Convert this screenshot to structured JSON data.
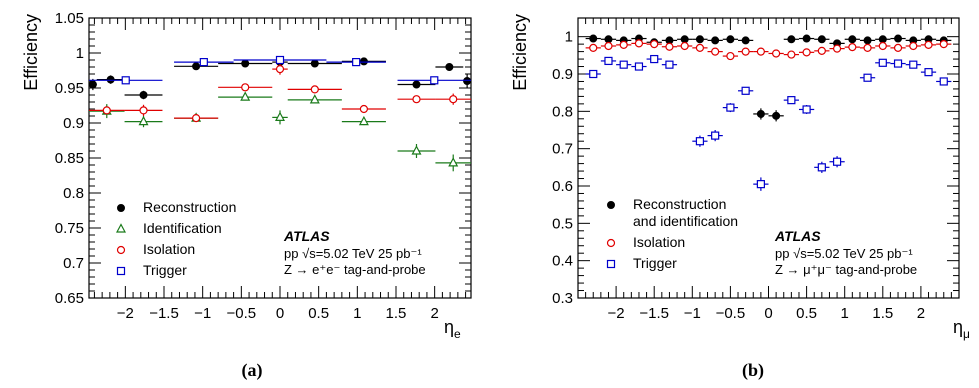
{
  "chart_data": [
    {
      "type": "scatter",
      "caption": "(a)",
      "ylabel": "Efficiency",
      "xlabel": "η",
      "xlabel_sub": "e",
      "xlim": [
        -2.47,
        2.47
      ],
      "ylim": [
        0.65,
        1.05
      ],
      "xticks": [
        -2,
        -1.5,
        -1,
        -0.5,
        0,
        0.5,
        1,
        1.5,
        2
      ],
      "xtick_labels": [
        "−2",
        "−1.5",
        "−1",
        "−0.5",
        "0",
        "0.5",
        "1",
        "1.5",
        "2"
      ],
      "yticks": [
        0.65,
        0.7,
        0.75,
        0.8,
        0.85,
        0.9,
        0.95,
        1,
        1.05
      ],
      "ytick_labels": [
        "0.65",
        "0.7",
        "0.75",
        "0.8",
        "0.85",
        "0.9",
        "0.95",
        "1",
        "1.05"
      ],
      "annotation": {
        "experiment": "ATLAS",
        "line1": "pp √s=5.02 TeV 25 pb⁻¹",
        "line2": "Z → e⁺e⁻ tag-and-probe"
      },
      "legend": {
        "position": "bottom-left"
      },
      "series": [
        {
          "name": "Reconstruction",
          "marker": "filled-circle",
          "color": "#000000",
          "points": [
            {
              "x0": -2.47,
              "x1": -2.37,
              "y": 0.955,
              "e": 0.008
            },
            {
              "x0": -2.37,
              "x1": -2.01,
              "y": 0.962,
              "e": 0.006
            },
            {
              "x0": -2.01,
              "x1": -1.52,
              "y": 0.94,
              "e": 0.006
            },
            {
              "x0": -1.37,
              "x1": -0.8,
              "y": 0.981,
              "e": 0.002
            },
            {
              "x0": -0.8,
              "x1": -0.1,
              "y": 0.985,
              "e": 0.002
            },
            {
              "x0": -0.1,
              "x1": 0.1,
              "y": 0.987,
              "e": 0.003
            },
            {
              "x0": 0.1,
              "x1": 0.8,
              "y": 0.985,
              "e": 0.002
            },
            {
              "x0": 0.8,
              "x1": 1.37,
              "y": 0.988,
              "e": 0.002
            },
            {
              "x0": 1.52,
              "x1": 2.01,
              "y": 0.955,
              "e": 0.005
            },
            {
              "x0": 2.01,
              "x1": 2.37,
              "y": 0.98,
              "e": 0.004
            },
            {
              "x0": 2.37,
              "x1": 2.47,
              "y": 0.96,
              "e": 0.01
            }
          ]
        },
        {
          "name": "Identification",
          "marker": "open-triangle",
          "color": "#1a7a1a",
          "points": [
            {
              "x0": -2.47,
              "x1": -2.01,
              "y": 0.917,
              "e": 0.01
            },
            {
              "x0": -2.01,
              "x1": -1.52,
              "y": 0.902,
              "e": 0.008
            },
            {
              "x0": -1.37,
              "x1": -0.8,
              "y": 0.907,
              "e": 0.004
            },
            {
              "x0": -0.8,
              "x1": -0.1,
              "y": 0.937,
              "e": 0.004
            },
            {
              "x0": -0.1,
              "x1": 0.1,
              "y": 0.908,
              "e": 0.01
            },
            {
              "x0": 0.1,
              "x1": 0.8,
              "y": 0.933,
              "e": 0.004
            },
            {
              "x0": 0.8,
              "x1": 1.37,
              "y": 0.902,
              "e": 0.005
            },
            {
              "x0": 1.52,
              "x1": 2.01,
              "y": 0.86,
              "e": 0.01
            },
            {
              "x0": 2.01,
              "x1": 2.47,
              "y": 0.843,
              "e": 0.012
            }
          ]
        },
        {
          "name": "Isolation",
          "marker": "open-circle",
          "color": "#e00000",
          "points": [
            {
              "x0": -2.47,
              "x1": -2.01,
              "y": 0.918,
              "e": 0.004
            },
            {
              "x0": -2.01,
              "x1": -1.52,
              "y": 0.918,
              "e": 0.008
            },
            {
              "x0": -1.37,
              "x1": -0.8,
              "y": 0.907,
              "e": 0.004
            },
            {
              "x0": -0.8,
              "x1": -0.1,
              "y": 0.951,
              "e": 0.004
            },
            {
              "x0": -0.1,
              "x1": 0.1,
              "y": 0.977,
              "e": 0.008
            },
            {
              "x0": 0.1,
              "x1": 0.8,
              "y": 0.948,
              "e": 0.004
            },
            {
              "x0": 0.8,
              "x1": 1.37,
              "y": 0.92,
              "e": 0.005
            },
            {
              "x0": 1.52,
              "x1": 2.01,
              "y": 0.934,
              "e": 0.005
            },
            {
              "x0": 2.01,
              "x1": 2.47,
              "y": 0.934,
              "e": 0.008
            }
          ]
        },
        {
          "name": "Trigger",
          "marker": "open-square",
          "color": "#0000cc",
          "points": [
            {
              "x0": -2.47,
              "x1": -1.52,
              "y": 0.961,
              "e": 0.002
            },
            {
              "x0": -1.37,
              "x1": -0.6,
              "y": 0.987,
              "e": 0.002
            },
            {
              "x0": -0.6,
              "x1": 0.6,
              "y": 0.99,
              "e": 0.002
            },
            {
              "x0": 0.6,
              "x1": 1.37,
              "y": 0.987,
              "e": 0.002
            },
            {
              "x0": 1.52,
              "x1": 2.47,
              "y": 0.961,
              "e": 0.002
            }
          ]
        }
      ]
    },
    {
      "type": "scatter",
      "caption": "(b)",
      "ylabel": "Efficiency",
      "xlabel": "η",
      "xlabel_sub": "μ",
      "xlim": [
        -2.5,
        2.5
      ],
      "ylim": [
        0.3,
        1.05
      ],
      "xticks": [
        -2,
        -1.5,
        -1,
        -0.5,
        0,
        0.5,
        1,
        1.5,
        2
      ],
      "xtick_labels": [
        "−2",
        "−1.5",
        "−1",
        "−0.5",
        "0",
        "0.5",
        "1",
        "1.5",
        "2"
      ],
      "yticks": [
        0.3,
        0.4,
        0.5,
        0.6,
        0.7,
        0.8,
        0.9,
        1
      ],
      "ytick_labels": [
        "0.3",
        "0.4",
        "0.5",
        "0.6",
        "0.7",
        "0.8",
        "0.9",
        "1"
      ],
      "annotation": {
        "experiment": "ATLAS",
        "line1": "pp √s=5.02 TeV 25 pb⁻¹",
        "line2": "Z → μ⁺μ⁻ tag-and-probe"
      },
      "legend": {
        "position": "bottom-left"
      },
      "series": [
        {
          "name": "Reconstruction and identification",
          "name_lines": [
            "Reconstruction",
            "and identification"
          ],
          "marker": "filled-circle",
          "color": "#000000",
          "points": [
            {
              "x": -2.3,
              "y": 0.995,
              "e": 0.005
            },
            {
              "x": -2.1,
              "y": 0.993,
              "e": 0.004
            },
            {
              "x": -1.9,
              "y": 0.99,
              "e": 0.004
            },
            {
              "x": -1.7,
              "y": 0.995,
              "e": 0.004
            },
            {
              "x": -1.5,
              "y": 0.985,
              "e": 0.004
            },
            {
              "x": -1.3,
              "y": 0.99,
              "e": 0.004
            },
            {
              "x": -1.1,
              "y": 0.993,
              "e": 0.004
            },
            {
              "x": -0.9,
              "y": 0.993,
              "e": 0.004
            },
            {
              "x": -0.7,
              "y": 0.99,
              "e": 0.004
            },
            {
              "x": -0.5,
              "y": 0.993,
              "e": 0.004
            },
            {
              "x": -0.3,
              "y": 0.99,
              "e": 0.004
            },
            {
              "x": -0.1,
              "y": 0.793,
              "e": 0.015
            },
            {
              "x": 0.1,
              "y": 0.788,
              "e": 0.015
            },
            {
              "x": 0.3,
              "y": 0.993,
              "e": 0.004
            },
            {
              "x": 0.5,
              "y": 0.995,
              "e": 0.004
            },
            {
              "x": 0.7,
              "y": 0.993,
              "e": 0.004
            },
            {
              "x": 0.9,
              "y": 0.982,
              "e": 0.004
            },
            {
              "x": 1.1,
              "y": 0.993,
              "e": 0.004
            },
            {
              "x": 1.3,
              "y": 0.99,
              "e": 0.004
            },
            {
              "x": 1.5,
              "y": 0.993,
              "e": 0.004
            },
            {
              "x": 1.7,
              "y": 0.995,
              "e": 0.004
            },
            {
              "x": 1.9,
              "y": 0.99,
              "e": 0.004
            },
            {
              "x": 2.1,
              "y": 0.993,
              "e": 0.004
            },
            {
              "x": 2.3,
              "y": 0.99,
              "e": 0.005
            }
          ]
        },
        {
          "name": "Isolation",
          "marker": "open-circle",
          "color": "#e00000",
          "points": [
            {
              "x": -2.3,
              "y": 0.97,
              "e": 0.005
            },
            {
              "x": -2.1,
              "y": 0.975,
              "e": 0.004
            },
            {
              "x": -1.9,
              "y": 0.978,
              "e": 0.004
            },
            {
              "x": -1.7,
              "y": 0.982,
              "e": 0.004
            },
            {
              "x": -1.5,
              "y": 0.98,
              "e": 0.004
            },
            {
              "x": -1.3,
              "y": 0.973,
              "e": 0.004
            },
            {
              "x": -1.1,
              "y": 0.975,
              "e": 0.004
            },
            {
              "x": -0.9,
              "y": 0.97,
              "e": 0.004
            },
            {
              "x": -0.7,
              "y": 0.96,
              "e": 0.004
            },
            {
              "x": -0.5,
              "y": 0.948,
              "e": 0.004
            },
            {
              "x": -0.3,
              "y": 0.96,
              "e": 0.004
            },
            {
              "x": -0.1,
              "y": 0.96,
              "e": 0.005
            },
            {
              "x": 0.1,
              "y": 0.955,
              "e": 0.005
            },
            {
              "x": 0.3,
              "y": 0.952,
              "e": 0.004
            },
            {
              "x": 0.5,
              "y": 0.958,
              "e": 0.004
            },
            {
              "x": 0.7,
              "y": 0.962,
              "e": 0.004
            },
            {
              "x": 0.9,
              "y": 0.968,
              "e": 0.004
            },
            {
              "x": 1.1,
              "y": 0.972,
              "e": 0.004
            },
            {
              "x": 1.3,
              "y": 0.97,
              "e": 0.004
            },
            {
              "x": 1.5,
              "y": 0.975,
              "e": 0.004
            },
            {
              "x": 1.7,
              "y": 0.97,
              "e": 0.004
            },
            {
              "x": 1.9,
              "y": 0.975,
              "e": 0.004
            },
            {
              "x": 2.1,
              "y": 0.978,
              "e": 0.004
            },
            {
              "x": 2.3,
              "y": 0.98,
              "e": 0.005
            }
          ]
        },
        {
          "name": "Trigger",
          "marker": "open-square",
          "color": "#0000cc",
          "points": [
            {
              "x": -2.3,
              "y": 0.9,
              "e": 0.01
            },
            {
              "x": -2.1,
              "y": 0.935,
              "e": 0.008
            },
            {
              "x": -1.9,
              "y": 0.925,
              "e": 0.008
            },
            {
              "x": -1.7,
              "y": 0.92,
              "e": 0.008
            },
            {
              "x": -1.5,
              "y": 0.94,
              "e": 0.008
            },
            {
              "x": -1.3,
              "y": 0.925,
              "e": 0.008
            },
            {
              "x": -0.9,
              "y": 0.72,
              "e": 0.015
            },
            {
              "x": -0.7,
              "y": 0.735,
              "e": 0.015
            },
            {
              "x": -0.5,
              "y": 0.81,
              "e": 0.012
            },
            {
              "x": -0.3,
              "y": 0.855,
              "e": 0.01
            },
            {
              "x": -0.1,
              "y": 0.605,
              "e": 0.018
            },
            {
              "x": 0.3,
              "y": 0.83,
              "e": 0.01
            },
            {
              "x": 0.5,
              "y": 0.805,
              "e": 0.012
            },
            {
              "x": 0.7,
              "y": 0.65,
              "e": 0.015
            },
            {
              "x": 0.9,
              "y": 0.665,
              "e": 0.015
            },
            {
              "x": 1.3,
              "y": 0.89,
              "e": 0.008
            },
            {
              "x": 1.5,
              "y": 0.93,
              "e": 0.008
            },
            {
              "x": 1.7,
              "y": 0.928,
              "e": 0.008
            },
            {
              "x": 1.9,
              "y": 0.925,
              "e": 0.008
            },
            {
              "x": 2.1,
              "y": 0.905,
              "e": 0.008
            },
            {
              "x": 2.3,
              "y": 0.88,
              "e": 0.01
            }
          ]
        }
      ]
    }
  ]
}
